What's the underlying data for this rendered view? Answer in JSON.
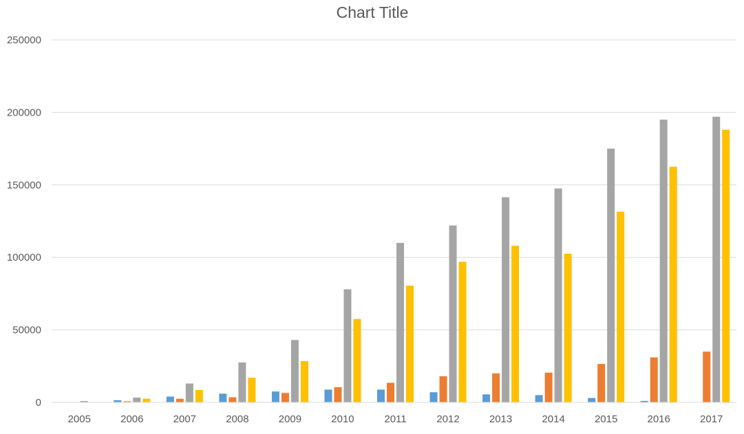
{
  "chart_data": {
    "type": "bar",
    "title": "Chart Title",
    "xlabel": "",
    "ylabel": "",
    "ylim": [
      0,
      250000
    ],
    "yticks": [
      0,
      50000,
      100000,
      150000,
      200000,
      250000
    ],
    "grid": true,
    "legend": "none",
    "categories": [
      "2005",
      "2006",
      "2007",
      "2008",
      "2009",
      "2010",
      "2011",
      "2012",
      "2013",
      "2014",
      "2015",
      "2016",
      "2017"
    ],
    "series": [
      {
        "color": "#5b9bd5",
        "values": [
          0,
          1500,
          4000,
          6000,
          7500,
          8800,
          8800,
          7000,
          5500,
          5000,
          3000,
          1000,
          0
        ]
      },
      {
        "color": "#ed7d31",
        "values": [
          0,
          700,
          2500,
          3500,
          6500,
          10500,
          13500,
          18000,
          20000,
          20500,
          26500,
          31000,
          35000
        ]
      },
      {
        "color": "#a5a5a5",
        "values": [
          900,
          3300,
          13000,
          27500,
          43000,
          78000,
          110000,
          122000,
          141500,
          147500,
          175000,
          195000,
          197000
        ]
      },
      {
        "color": "#ffc000",
        "values": [
          0,
          2500,
          8500,
          17000,
          28500,
          57500,
          80500,
          97000,
          108000,
          102500,
          131500,
          162500,
          188000
        ]
      }
    ]
  }
}
